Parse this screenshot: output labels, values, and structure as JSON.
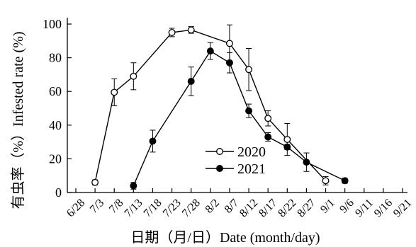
{
  "chart_data": {
    "type": "line",
    "xlabel": "日期（月/日）Date (month/day)",
    "ylabel": "有虫率（%）Infested rate (%)",
    "ylim": [
      0,
      100
    ],
    "yticks": [
      0,
      20,
      40,
      60,
      80,
      100
    ],
    "categories": [
      "6/28",
      "7/3",
      "7/8",
      "7/13",
      "7/18",
      "7/23",
      "7/28",
      "8/2",
      "8/7",
      "8/12",
      "8/17",
      "8/22",
      "8/27",
      "9/1",
      "9/6",
      "9/11",
      "9/16",
      "9/21"
    ],
    "legend_position": "bottom-right",
    "series": [
      {
        "name": "2020",
        "marker": "open-circle",
        "points": [
          {
            "x": "7/3",
            "y": 6,
            "err": 1.5
          },
          {
            "x": "7/8",
            "y": 59.5,
            "err": 8
          },
          {
            "x": "7/13",
            "y": 69,
            "err": 8
          },
          {
            "x": "7/23",
            "y": 95,
            "err": 2.5
          },
          {
            "x": "7/28",
            "y": 96.5,
            "err": 2
          },
          {
            "x": "8/7",
            "y": 88.5,
            "err": 11
          },
          {
            "x": "8/12",
            "y": 73,
            "err": 12.5
          },
          {
            "x": "8/17",
            "y": 44,
            "err": 4.5
          },
          {
            "x": "8/22",
            "y": 31.5,
            "err": 9.5
          },
          {
            "x": "9/1",
            "y": 7,
            "err": 2.5
          }
        ]
      },
      {
        "name": "2021",
        "marker": "filled-circle",
        "points": [
          {
            "x": "7/13",
            "y": 4,
            "err": 2
          },
          {
            "x": "7/18",
            "y": 30.5,
            "err": 6.5
          },
          {
            "x": "7/28",
            "y": 66,
            "err": 8.5
          },
          {
            "x": "8/2",
            "y": 84,
            "err": 5
          },
          {
            "x": "8/7",
            "y": 77,
            "err": 6
          },
          {
            "x": "8/12",
            "y": 48.5,
            "err": 4
          },
          {
            "x": "8/17",
            "y": 33,
            "err": 2.5
          },
          {
            "x": "8/22",
            "y": 27,
            "err": 1.5
          },
          {
            "x": "8/27",
            "y": 18,
            "err": 5.5
          },
          {
            "x": "9/6",
            "y": 7,
            "err": 1.5
          }
        ]
      }
    ]
  }
}
